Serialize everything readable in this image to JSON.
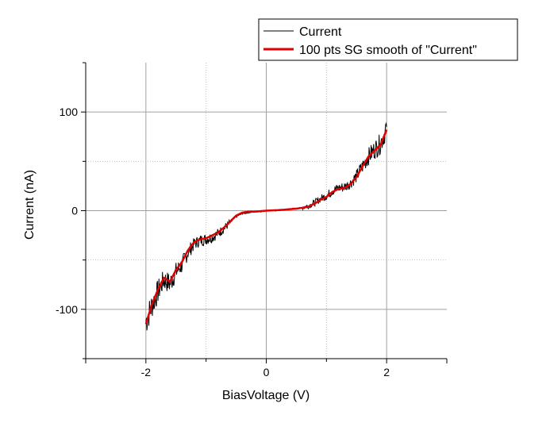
{
  "chart_data": {
    "type": "line",
    "xlabel": "BiasVoltage (V)",
    "ylabel": "Current (nA)",
    "xlim": [
      -3,
      3
    ],
    "ylim": [
      -150,
      150
    ],
    "x_ticks": [
      -2,
      0,
      2
    ],
    "x_tick_labels": [
      "-2",
      "0",
      "2"
    ],
    "y_ticks": [
      -100,
      0,
      100
    ],
    "y_tick_labels": [
      "-100",
      "0",
      "100"
    ],
    "grid": "dotted gridlines every 1 V and 50 nA",
    "legend_position": "top-right",
    "series": [
      {
        "name": "Current",
        "color": "#000000",
        "style": "noisy raw data",
        "x": [
          -2.0,
          -1.9,
          -1.8,
          -1.7,
          -1.6,
          -1.5,
          -1.4,
          -1.3,
          -1.2,
          -1.1,
          -1.0,
          -0.9,
          -0.8,
          -0.7,
          -0.6,
          -0.5,
          -0.4,
          -0.3,
          -0.2,
          -0.1,
          0.0,
          0.1,
          0.2,
          0.3,
          0.4,
          0.5,
          0.6,
          0.7,
          0.8,
          0.9,
          1.0,
          1.1,
          1.2,
          1.3,
          1.4,
          1.5,
          1.6,
          1.7,
          1.8,
          1.9,
          2.0
        ],
        "y": [
          -112,
          -96,
          -82,
          -70,
          -74,
          -62,
          -55,
          -42,
          -34,
          -30,
          -29,
          -27,
          -23,
          -18,
          -12,
          -6,
          -3,
          -2,
          -1,
          -1,
          0,
          0,
          0,
          1,
          2,
          2,
          3,
          5,
          8,
          12,
          15,
          20,
          23,
          24,
          28,
          35,
          45,
          55,
          62,
          68,
          85
        ]
      },
      {
        "name": "100 pts SG smooth of \"Current\"",
        "color": "#e00000",
        "style": "smooth line",
        "x": [
          -2.0,
          -1.9,
          -1.8,
          -1.7,
          -1.6,
          -1.5,
          -1.4,
          -1.3,
          -1.2,
          -1.1,
          -1.0,
          -0.9,
          -0.8,
          -0.7,
          -0.6,
          -0.5,
          -0.4,
          -0.3,
          -0.2,
          -0.1,
          0.0,
          0.1,
          0.2,
          0.3,
          0.4,
          0.5,
          0.6,
          0.7,
          0.8,
          0.9,
          1.0,
          1.1,
          1.2,
          1.3,
          1.4,
          1.5,
          1.6,
          1.7,
          1.8,
          1.9,
          2.0
        ],
        "y": [
          -115,
          -95,
          -80,
          -68,
          -72,
          -60,
          -52,
          -40,
          -32,
          -29,
          -28,
          -25,
          -22,
          -17,
          -11,
          -5,
          -2,
          -1,
          -1,
          -0.5,
          0,
          0.3,
          0.6,
          1,
          1.5,
          2,
          3,
          4,
          7,
          11,
          14,
          19,
          22,
          23,
          27,
          34,
          45,
          55,
          61,
          67,
          82
        ]
      }
    ]
  }
}
